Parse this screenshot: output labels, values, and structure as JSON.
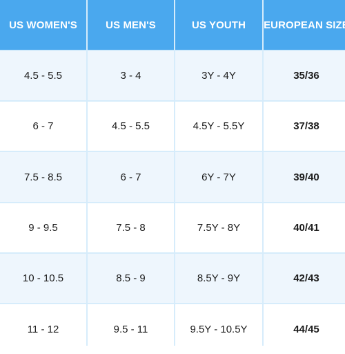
{
  "table": {
    "headers": [
      "US WOMEN'S",
      "US MEN'S",
      "US YOUTH",
      "EUROPEAN SIZE"
    ],
    "rows": [
      [
        "4.5 - 5.5",
        "3 - 4",
        "3Y - 4Y",
        "35/36"
      ],
      [
        "6 - 7",
        "4.5 - 5.5",
        "4.5Y - 5.5Y",
        "37/38"
      ],
      [
        "7.5 - 8.5",
        "6 - 7",
        "6Y - 7Y",
        "39/40"
      ],
      [
        "9 - 9.5",
        "7.5 - 8",
        "7.5Y - 8Y",
        "40/41"
      ],
      [
        "10 - 10.5",
        "8.5 - 9",
        "8.5Y - 9Y",
        "42/43"
      ],
      [
        "11 - 12",
        "9.5 - 11",
        "9.5Y - 10.5Y",
        "44/45"
      ]
    ]
  },
  "colors": {
    "header_bg": "#4aa8ee",
    "header_text": "#ffffff",
    "shaded_row_bg": "#eef6fd",
    "plain_row_bg": "#ffffff",
    "grid_line": "#d6ecfb"
  }
}
